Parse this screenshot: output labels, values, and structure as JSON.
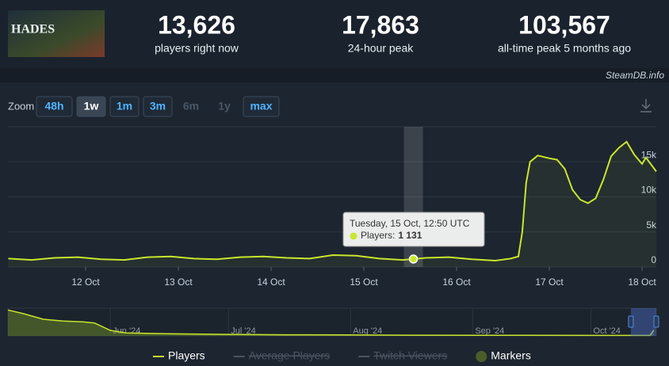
{
  "header": {
    "logo": "HADES",
    "stats": [
      {
        "value": "13,626",
        "label": "players right now"
      },
      {
        "value": "17,863",
        "label": "24-hour peak"
      },
      {
        "value": "103,567",
        "label": "all-time peak 5 months ago"
      }
    ],
    "source": "SteamDB.info"
  },
  "zoom": {
    "label": "Zoom",
    "buttons": [
      {
        "label": "48h",
        "state": "normal"
      },
      {
        "label": "1w",
        "state": "active"
      },
      {
        "label": "1m",
        "state": "normal"
      },
      {
        "label": "3m",
        "state": "normal"
      },
      {
        "label": "6m",
        "state": "disabled"
      },
      {
        "label": "1y",
        "state": "disabled"
      },
      {
        "label": "max",
        "state": "normal"
      }
    ]
  },
  "chart_data": {
    "type": "line",
    "x": [
      "2024-10-11T04:00",
      "2024-10-11T10:00",
      "2024-10-11T16:00",
      "2024-10-11T22:00",
      "2024-10-12T04:00",
      "2024-10-12T10:00",
      "2024-10-12T16:00",
      "2024-10-12T22:00",
      "2024-10-13T04:00",
      "2024-10-13T10:00",
      "2024-10-13T16:00",
      "2024-10-13T22:00",
      "2024-10-14T04:00",
      "2024-10-14T10:00",
      "2024-10-14T16:00",
      "2024-10-14T22:00",
      "2024-10-15T04:00",
      "2024-10-15T10:00",
      "2024-10-15T12:50",
      "2024-10-15T16:00",
      "2024-10-15T22:00",
      "2024-10-16T04:00",
      "2024-10-16T10:00",
      "2024-10-16T14:00",
      "2024-10-16T16:00",
      "2024-10-16T17:00",
      "2024-10-16T18:00",
      "2024-10-16T19:00",
      "2024-10-16T21:00",
      "2024-10-17T00:00",
      "2024-10-17T02:00",
      "2024-10-17T04:00",
      "2024-10-17T06:00",
      "2024-10-17T08:00",
      "2024-10-17T10:00",
      "2024-10-17T12:00",
      "2024-10-17T14:00",
      "2024-10-17T16:00",
      "2024-10-17T18:00",
      "2024-10-17T20:00",
      "2024-10-17T22:00",
      "2024-10-18T00:00",
      "2024-10-18T01:00",
      "2024-10-18T03:40"
    ],
    "series": [
      {
        "name": "Players",
        "color": "#c8e62c",
        "values": [
          1200,
          1000,
          1300,
          1400,
          1100,
          1000,
          1400,
          1500,
          1200,
          1100,
          1400,
          1500,
          1300,
          1200,
          1700,
          1600,
          1200,
          1000,
          1131,
          1300,
          1400,
          1100,
          900,
          1200,
          1500,
          5000,
          12000,
          15000,
          15900,
          15500,
          15300,
          14000,
          11000,
          9600,
          9100,
          9800,
          12500,
          15800,
          17000,
          17863,
          16000,
          14700,
          15600,
          13626
        ]
      }
    ],
    "xlim": [
      "2024-10-11T03:54",
      "2024-10-18T03:41"
    ],
    "xticks": [
      {
        "value": "2024-10-12T00:00",
        "label": "12 Oct"
      },
      {
        "value": "2024-10-13T00:00",
        "label": "13 Oct"
      },
      {
        "value": "2024-10-14T00:00",
        "label": "14 Oct"
      },
      {
        "value": "2024-10-15T00:00",
        "label": "15 Oct"
      },
      {
        "value": "2024-10-16T00:00",
        "label": "16 Oct"
      },
      {
        "value": "2024-10-17T00:00",
        "label": "17 Oct"
      },
      {
        "value": "2024-10-18T00:00",
        "label": "18 Oct"
      }
    ],
    "ylim": [
      0,
      20000
    ],
    "yticks": [
      0,
      {
        "value": 5000,
        "label": "5k"
      },
      {
        "value": 10000,
        "label": "10k"
      },
      {
        "value": 15000,
        "label": "15k"
      }
    ],
    "grid": true,
    "tooltip": {
      "title": "Tuesday, 15 Oct, 12:50 UTC",
      "label": "Players:",
      "x": "2024-10-15T12:50",
      "value": 1131,
      "value_label": "1 131"
    },
    "legend_extra": [
      {
        "name": "Average Players",
        "enabled": false
      },
      {
        "name": "Twitch Viewers",
        "enabled": false
      },
      {
        "name": "Markers",
        "enabled": true,
        "color": "#4b5e2a"
      }
    ],
    "navigator": {
      "x": [
        "2024-05-06",
        "2024-05-10",
        "2024-05-15",
        "2024-05-20",
        "2024-05-25",
        "2024-05-28",
        "2024-06-01",
        "2024-06-05",
        "2024-06-15",
        "2024-07-01",
        "2024-07-15",
        "2024-08-01",
        "2024-08-15",
        "2024-09-01",
        "2024-09-15",
        "2024-10-01",
        "2024-10-16",
        "2024-10-17"
      ],
      "values": [
        70000,
        60000,
        45000,
        40000,
        38000,
        35000,
        15000,
        8000,
        6000,
        4000,
        3000,
        2500,
        2000,
        1800,
        1500,
        1300,
        1200,
        16000
      ],
      "xlim": [
        "2024-05-06",
        "2024-10-17T15:00"
      ],
      "ylim": [
        0,
        75000
      ],
      "xticks": [
        {
          "value": "2024-06-01",
          "label": "Jun '24"
        },
        {
          "value": "2024-07-01",
          "label": "Jul '24"
        },
        {
          "value": "2024-08-01",
          "label": "Aug '24"
        },
        {
          "value": "2024-09-01",
          "label": "Sep '24"
        },
        {
          "value": "2024-10-01",
          "label": "Oct '24"
        }
      ]
    }
  }
}
